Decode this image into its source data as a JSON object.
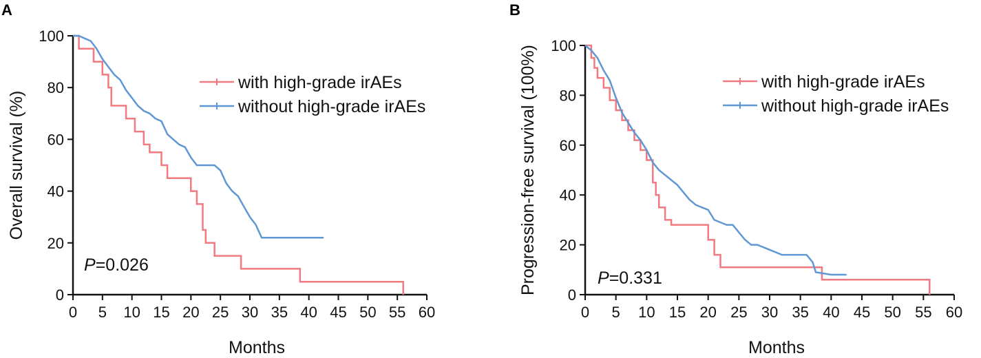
{
  "chart_data": [
    {
      "type": "line",
      "panel": "A",
      "xlabel": "Months",
      "ylabel": "Overall survival (%)",
      "xlim": [
        0,
        60
      ],
      "ylim": [
        0,
        100
      ],
      "xticks": [
        "0",
        "5",
        "10",
        "15",
        "20",
        "25",
        "30",
        "35",
        "40",
        "45",
        "50",
        "55",
        "60"
      ],
      "yticks": [
        "0",
        "20",
        "40",
        "60",
        "80",
        "100"
      ],
      "annotation": {
        "italic": "P",
        "rest": "=0.026"
      },
      "series": [
        {
          "name": "with high-grade irAEs",
          "color": "#f07a80",
          "x": [
            0,
            1,
            1,
            3.5,
            3.5,
            5,
            5,
            6,
            6,
            6.5,
            6.5,
            9,
            9,
            10.5,
            10.5,
            12,
            12,
            13,
            13,
            15,
            15,
            16,
            16,
            20,
            20,
            21,
            21,
            22,
            22,
            22.5,
            22.5,
            24,
            24,
            28.5,
            28.5,
            38.5,
            38.5,
            56,
            56
          ],
          "y": [
            100,
            100,
            95,
            95,
            90,
            90,
            85,
            85,
            80,
            80,
            73,
            73,
            68,
            68,
            63,
            63,
            58,
            58,
            55,
            55,
            50,
            50,
            45,
            45,
            40,
            40,
            35,
            35,
            25,
            25,
            20,
            20,
            15,
            15,
            10,
            10,
            5,
            5,
            0
          ]
        },
        {
          "name": "without high-grade irAEs",
          "color": "#5f97d4",
          "x": [
            0,
            1,
            2,
            3,
            4,
            5,
            6,
            7,
            8,
            9,
            10,
            11,
            12,
            13,
            14,
            15,
            16,
            17,
            18,
            19,
            20,
            21,
            22,
            23,
            24,
            25,
            26,
            27,
            28,
            29,
            30,
            31,
            32,
            33,
            35,
            38,
            40,
            42.5
          ],
          "y": [
            100,
            100,
            99,
            98,
            95,
            91,
            88,
            85,
            83,
            79,
            76,
            73,
            71,
            70,
            68,
            67,
            62,
            60,
            58,
            57,
            53,
            50,
            50,
            50,
            50,
            48,
            43,
            40,
            38,
            34,
            30,
            27,
            22,
            22,
            22,
            22,
            22,
            22
          ]
        }
      ]
    },
    {
      "type": "line",
      "panel": "B",
      "xlabel": "Months",
      "ylabel": "Progression-free survival (100%)",
      "xlim": [
        0,
        60
      ],
      "ylim": [
        0,
        100
      ],
      "xticks": [
        "0",
        "5",
        "10",
        "15",
        "20",
        "25",
        "30",
        "35",
        "40",
        "45",
        "50",
        "55",
        "60"
      ],
      "yticks": [
        "0",
        "20",
        "40",
        "60",
        "80",
        "100"
      ],
      "annotation": {
        "italic": "P",
        "rest": "=0.331"
      },
      "series": [
        {
          "name": "with high-grade irAEs",
          "color": "#f07a80",
          "x": [
            0,
            1,
            1,
            1.5,
            1.5,
            2,
            2,
            3,
            3,
            4,
            4,
            5,
            5,
            6,
            6,
            7,
            7,
            8,
            8,
            9,
            9,
            10,
            10,
            11,
            11,
            11.5,
            11.5,
            12,
            12,
            13,
            13,
            14,
            14,
            20,
            20,
            21,
            21,
            22,
            22,
            38.5,
            38.5,
            56,
            56
          ],
          "y": [
            100,
            100,
            95,
            95,
            91,
            91,
            87,
            87,
            83,
            83,
            78,
            78,
            74,
            74,
            70,
            70,
            66,
            66,
            62,
            62,
            58,
            58,
            54,
            54,
            45,
            45,
            40,
            40,
            35,
            35,
            30,
            30,
            28,
            28,
            22,
            22,
            16,
            16,
            11,
            11,
            6,
            6,
            0
          ]
        },
        {
          "name": "without high-grade irAEs",
          "color": "#5f97d4",
          "x": [
            0,
            1,
            2,
            3,
            4,
            5,
            6,
            7,
            8,
            9,
            10,
            11,
            12,
            13,
            14,
            15,
            16,
            17,
            18,
            19,
            20,
            21,
            22,
            23,
            24,
            25,
            26,
            27,
            28,
            30,
            32,
            34,
            36,
            37,
            37.5,
            40,
            42.5
          ],
          "y": [
            100,
            98,
            95,
            90,
            86,
            79,
            73,
            69,
            65,
            62,
            58,
            53,
            50,
            48,
            46,
            44,
            41,
            38,
            36,
            35,
            34,
            30,
            29,
            28,
            28,
            25,
            22,
            20,
            20,
            18,
            16,
            16,
            16,
            13,
            9,
            8,
            8
          ]
        }
      ]
    }
  ]
}
